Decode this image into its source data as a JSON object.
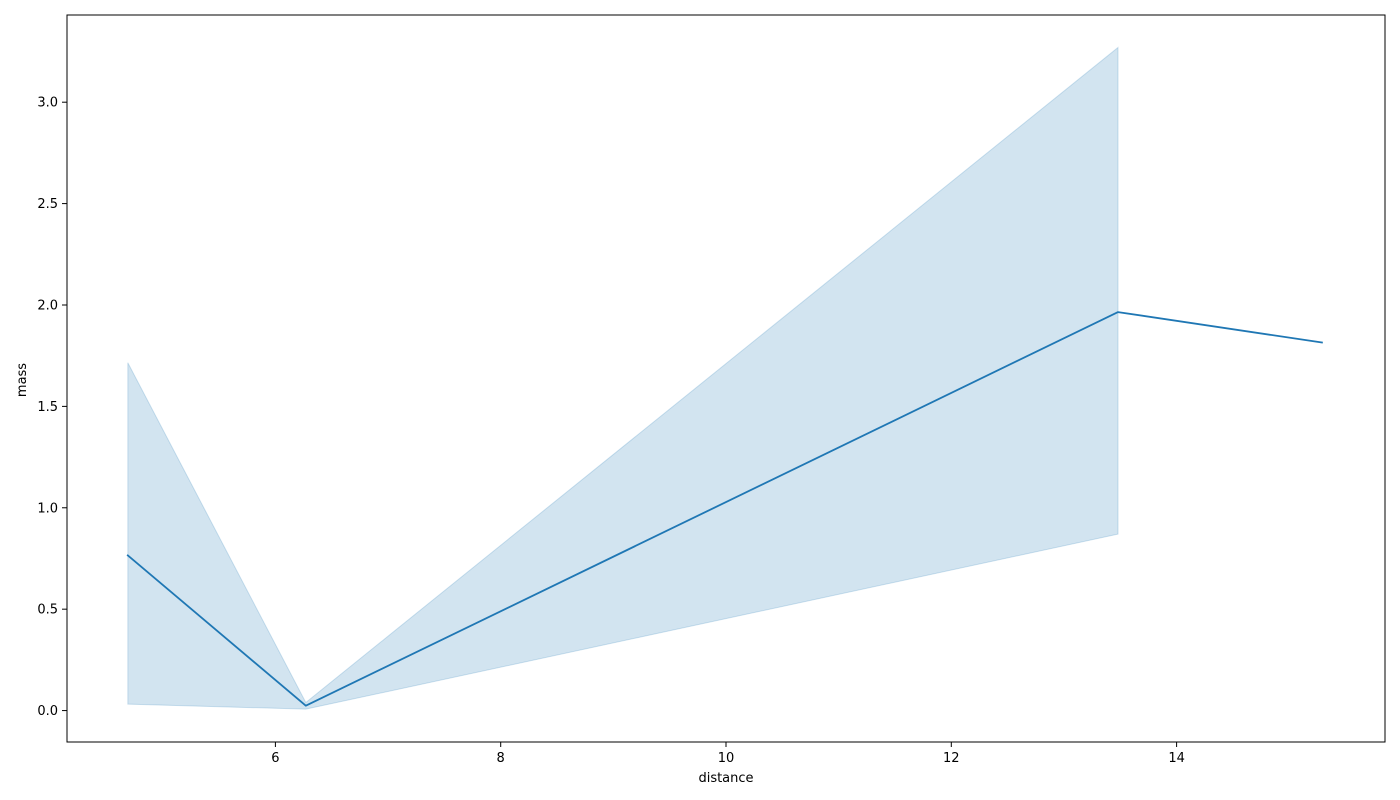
{
  "chart_data": {
    "type": "line",
    "title": "",
    "xlabel": "distance",
    "ylabel": "mass",
    "xlim": [
      4.15,
      15.85
    ],
    "ylim": [
      -0.155,
      3.43
    ],
    "xticks": [
      6,
      8,
      10,
      12,
      14
    ],
    "yticks": [
      0.0,
      0.5,
      1.0,
      1.5,
      2.0,
      2.5,
      3.0
    ],
    "xtick_labels": [
      "6",
      "8",
      "10",
      "12",
      "14"
    ],
    "ytick_labels": [
      "0.0",
      "0.5",
      "1.0",
      "1.5",
      "2.0",
      "2.5",
      "3.0"
    ],
    "grid": false,
    "legend": "none",
    "series": [
      {
        "x": [
          4.69,
          6.27,
          13.48,
          15.29
        ],
        "y": [
          0.765,
          0.024,
          1.965,
          1.815
        ],
        "color": "#1f77b4"
      }
    ],
    "confidence_band": {
      "x": [
        4.69,
        6.27,
        13.48
      ],
      "lower": [
        0.032,
        0.007,
        0.87
      ],
      "upper": [
        1.715,
        0.04,
        3.27
      ],
      "color": "#1f77b4",
      "opacity": 0.2
    }
  }
}
